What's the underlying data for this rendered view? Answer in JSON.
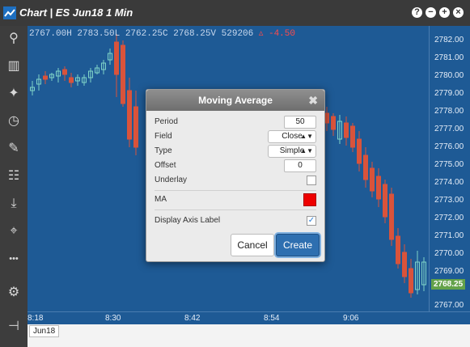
{
  "window": {
    "title": "Chart | ES Jun18 1 Min"
  },
  "title_buttons": [
    "?",
    "−",
    "+",
    "×"
  ],
  "toolbar": [
    {
      "name": "search-icon",
      "glyph": "⚲"
    },
    {
      "name": "candlestick-icon",
      "glyph": "▥"
    },
    {
      "name": "indicator-icon",
      "glyph": "✦"
    },
    {
      "name": "clock-icon",
      "glyph": "◷"
    },
    {
      "name": "draw-icon",
      "glyph": "✎"
    },
    {
      "name": "layout-icon",
      "glyph": "☷"
    },
    {
      "name": "download-icon",
      "glyph": "⤓"
    },
    {
      "name": "crosshair-icon",
      "glyph": "⌖"
    },
    {
      "name": "more-icon",
      "glyph": "•••"
    },
    {
      "name": "settings-icon",
      "glyph": "⚙"
    },
    {
      "name": "pin-icon",
      "glyph": "⊣"
    }
  ],
  "ohlc": {
    "text": "2767.00H 2783.50L 2762.25C 2768.25V 529206",
    "change": "▵ -4.50"
  },
  "yaxis": {
    "labels": [
      "2782.00",
      "2781.00",
      "2780.00",
      "2779.00",
      "2778.00",
      "2777.00",
      "2776.00",
      "2775.00",
      "2774.00",
      "2773.00",
      "2772.00",
      "2771.00",
      "2770.00",
      "2769.00",
      "2767.00"
    ],
    "current": "2768.25"
  },
  "xaxis": {
    "labels": [
      "8:18",
      "8:30",
      "8:42",
      "8:54",
      "9:06"
    ]
  },
  "range_button": "Jun18",
  "dialog": {
    "title": "Moving Average",
    "period_label": "Period",
    "period_value": "50",
    "field_label": "Field",
    "field_value": "Close",
    "type_label": "Type",
    "type_value": "Simple",
    "offset_label": "Offset",
    "offset_value": "0",
    "underlay_label": "Underlay",
    "ma_label": "MA",
    "axis_label": "Display Axis Label",
    "cancel": "Cancel",
    "create": "Create"
  },
  "colors": {
    "up": "#7fd3c8",
    "down": "#d9533b",
    "bg": "#1e5a95",
    "ma": "#ee0000"
  }
}
